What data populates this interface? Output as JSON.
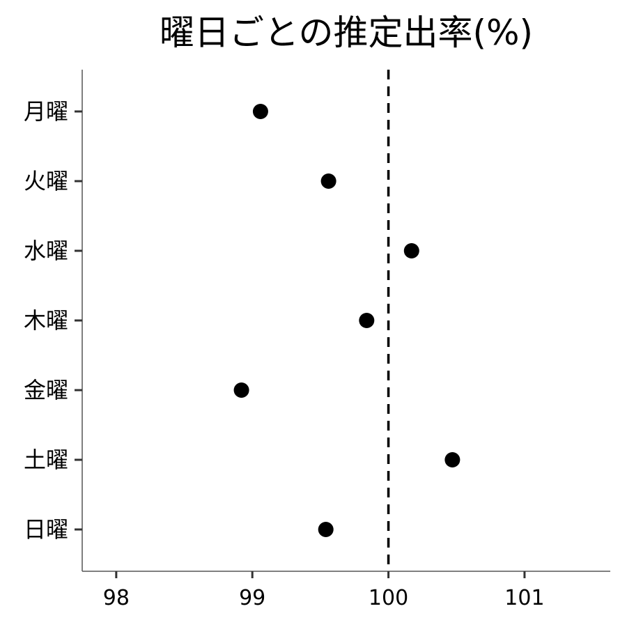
{
  "chart_data": {
    "type": "scatter",
    "title": "曜日ごとの推定出率(%)",
    "xlabel": "",
    "ylabel": "",
    "categories": [
      "月曜",
      "火曜",
      "水曜",
      "木曜",
      "金曜",
      "土曜",
      "日曜"
    ],
    "values": [
      99.06,
      99.56,
      100.17,
      99.84,
      98.92,
      100.47,
      99.54
    ],
    "xlim": [
      97.75,
      101.63
    ],
    "xticks": [
      98,
      99,
      100,
      101
    ],
    "xtick_labels": [
      "98",
      "99",
      "100",
      "101"
    ],
    "reference_line": {
      "x": 100,
      "style": "dashed"
    },
    "grid": false,
    "legend": "none",
    "point_color": "#000000"
  }
}
